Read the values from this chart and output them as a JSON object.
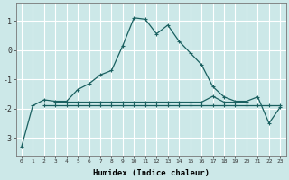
{
  "title": "",
  "xlabel": "Humidex (Indice chaleur)",
  "ylabel": "",
  "bg_color": "#cce8e8",
  "grid_color": "#ffffff",
  "line_color": "#1a6060",
  "xlim": [
    -0.5,
    23.5
  ],
  "ylim": [
    -3.6,
    1.6
  ],
  "xticks": [
    0,
    1,
    2,
    3,
    4,
    5,
    6,
    7,
    8,
    9,
    10,
    11,
    12,
    13,
    14,
    15,
    16,
    17,
    18,
    19,
    20,
    21,
    22,
    23
  ],
  "yticks": [
    -3,
    -2,
    -1,
    0,
    1
  ],
  "curve1_x": [
    0,
    1,
    2,
    3,
    4,
    5,
    6,
    7,
    8,
    9,
    10,
    11,
    12,
    13,
    14,
    15,
    16,
    17,
    18,
    19,
    20,
    21,
    22,
    23
  ],
  "curve1_y": [
    -3.3,
    -1.9,
    -1.7,
    -1.75,
    -1.75,
    -1.35,
    -1.15,
    -0.85,
    -0.7,
    0.15,
    1.1,
    1.05,
    0.55,
    0.85,
    0.3,
    -0.1,
    -0.5,
    -1.25,
    -1.6,
    -1.75,
    -1.75,
    -1.6,
    -2.5,
    -1.95
  ],
  "curve2_x": [
    2,
    3,
    4,
    5,
    6,
    7,
    8,
    9,
    10,
    11,
    12,
    13,
    14,
    15,
    16,
    17,
    18,
    19,
    20,
    21,
    22,
    23
  ],
  "curve2_y": [
    -1.9,
    -1.9,
    -1.9,
    -1.9,
    -1.9,
    -1.9,
    -1.9,
    -1.9,
    -1.9,
    -1.9,
    -1.9,
    -1.9,
    -1.9,
    -1.9,
    -1.9,
    -1.9,
    -1.9,
    -1.9,
    -1.9,
    -1.9,
    -1.9,
    -1.9
  ],
  "curve3_x": [
    3,
    4,
    5,
    6,
    7,
    8,
    9,
    10,
    11,
    12,
    13,
    14,
    15,
    16,
    17,
    18,
    19,
    20
  ],
  "curve3_y": [
    -1.78,
    -1.78,
    -1.78,
    -1.78,
    -1.78,
    -1.78,
    -1.78,
    -1.78,
    -1.78,
    -1.78,
    -1.78,
    -1.78,
    -1.78,
    -1.78,
    -1.58,
    -1.78,
    -1.78,
    -1.78
  ]
}
